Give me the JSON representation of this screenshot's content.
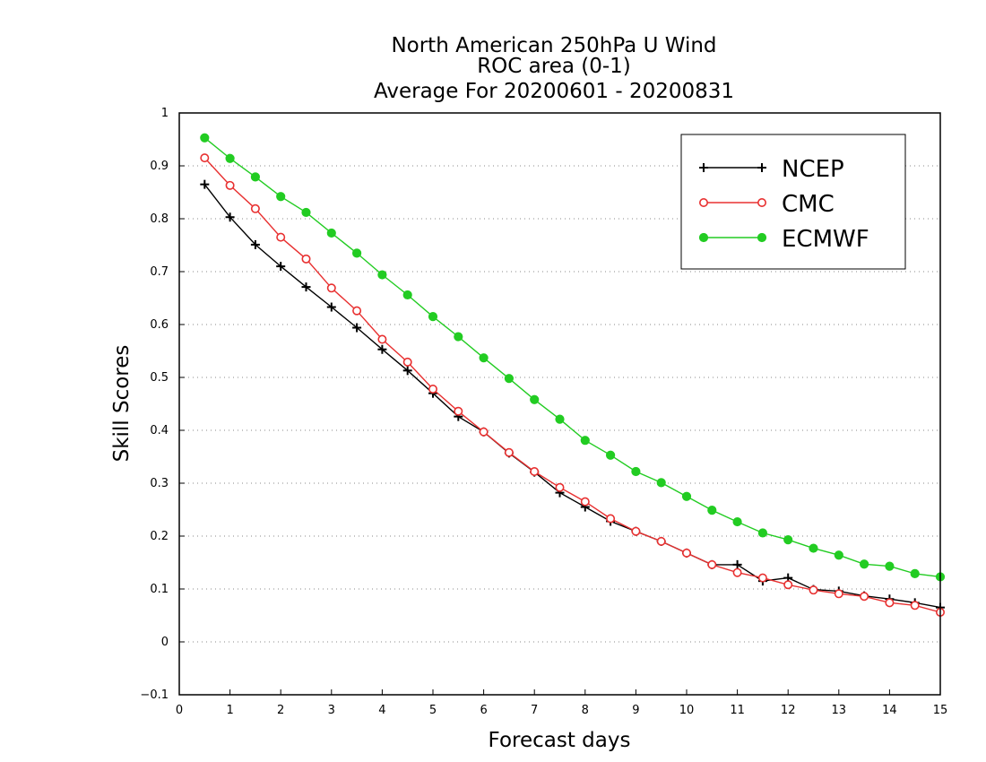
{
  "chart_data": {
    "type": "line",
    "title": [
      "North American 250hPa U Wind",
      "ROC area (0-1)",
      "Average For 20200601 - 20200831"
    ],
    "xlabel": "Forecast days",
    "ylabel": "Skill Scores",
    "xlim": [
      0,
      15
    ],
    "ylim": [
      -0.1,
      1
    ],
    "x_ticks": [
      0,
      1,
      2,
      3,
      4,
      5,
      6,
      7,
      8,
      9,
      10,
      11,
      12,
      13,
      14,
      15
    ],
    "y_ticks": [
      -0.1,
      0,
      0.1,
      0.2,
      0.3,
      0.4,
      0.5,
      0.6,
      0.7,
      0.8,
      0.9,
      1
    ],
    "grid": "horizontal-dotted",
    "legend_position": "top-right",
    "x": [
      0.5,
      1,
      1.5,
      2,
      2.5,
      3,
      3.5,
      4,
      4.5,
      5,
      5.5,
      6,
      6.5,
      7,
      7.5,
      8,
      8.5,
      9,
      9.5,
      10,
      10.5,
      11,
      11.5,
      12,
      12.5,
      13,
      13.5,
      14,
      14.5,
      15
    ],
    "series": [
      {
        "name": "NCEP",
        "color": "#000000",
        "marker": "plus",
        "values": [
          0.865,
          0.803,
          0.751,
          0.71,
          0.671,
          0.633,
          0.594,
          0.553,
          0.513,
          0.47,
          0.426,
          0.397,
          0.357,
          0.321,
          0.282,
          0.255,
          0.228,
          0.209,
          0.19,
          0.168,
          0.146,
          0.146,
          0.115,
          0.121,
          0.099,
          0.096,
          0.087,
          0.081,
          0.074,
          0.065
        ]
      },
      {
        "name": "CMC",
        "color": "#e83030",
        "marker": "open-circle",
        "values": [
          0.915,
          0.863,
          0.819,
          0.765,
          0.724,
          0.669,
          0.626,
          0.572,
          0.529,
          0.478,
          0.436,
          0.397,
          0.358,
          0.322,
          0.292,
          0.265,
          0.233,
          0.209,
          0.19,
          0.168,
          0.146,
          0.131,
          0.121,
          0.108,
          0.098,
          0.091,
          0.086,
          0.074,
          0.069,
          0.056
        ]
      },
      {
        "name": "ECMWF",
        "color": "#22cc22",
        "marker": "filled-circle",
        "values": [
          0.953,
          0.914,
          0.879,
          0.842,
          0.812,
          0.773,
          0.735,
          0.694,
          0.656,
          0.615,
          0.577,
          0.537,
          0.498,
          0.458,
          0.421,
          0.381,
          0.353,
          0.322,
          0.301,
          0.275,
          0.249,
          0.227,
          0.206,
          0.193,
          0.177,
          0.164,
          0.147,
          0.143,
          0.129,
          0.123
        ]
      }
    ]
  }
}
